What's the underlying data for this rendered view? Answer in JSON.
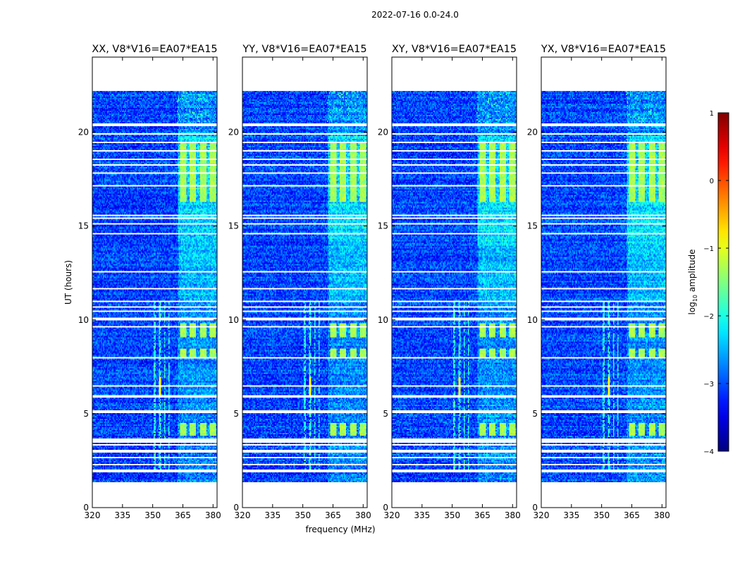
{
  "figure_title": "2022-07-16 0.0-24.0",
  "chart_data": [
    {
      "type": "heatmap",
      "title": "XX, V8*V16=EA07*EA15",
      "xlabel": "",
      "ylabel": "UT (hours)",
      "xlim": [
        320,
        382
      ],
      "ylim": [
        0,
        24
      ],
      "xticks": [
        320,
        335,
        350,
        365,
        380
      ],
      "yticks": [
        0,
        5,
        10,
        15,
        20
      ],
      "variant": 0
    },
    {
      "type": "heatmap",
      "title": "YY, V8*V16=EA07*EA15",
      "xlabel": "frequency (MHz)",
      "ylabel": "",
      "xlim": [
        320,
        382
      ],
      "ylim": [
        0,
        24
      ],
      "xticks": [
        320,
        335,
        350,
        365,
        380
      ],
      "yticks": [
        0,
        5,
        10,
        15,
        20
      ],
      "variant": 1
    },
    {
      "type": "heatmap",
      "title": "XY, V8*V16=EA07*EA15",
      "xlabel": "",
      "ylabel": "",
      "xlim": [
        320,
        382
      ],
      "ylim": [
        0,
        24
      ],
      "xticks": [
        320,
        335,
        350,
        365,
        380
      ],
      "yticks": [
        0,
        5,
        10,
        15,
        20
      ],
      "variant": 2
    },
    {
      "type": "heatmap",
      "title": "YX, V8*V16=EA07*EA15",
      "xlabel": "",
      "ylabel": "",
      "xlim": [
        320,
        382
      ],
      "ylim": [
        0,
        24
      ],
      "xticks": [
        320,
        335,
        350,
        365,
        380
      ],
      "yticks": [
        0,
        5,
        10,
        15,
        20
      ],
      "variant": 3
    }
  ],
  "colorbar": {
    "label_prefix": "log",
    "label_sub": "10",
    "label_suffix": " amplitude",
    "range": [
      -4,
      1
    ],
    "ticks": [
      1,
      0,
      -1,
      -2,
      -3,
      -4
    ],
    "tick_labels": [
      "1",
      "0",
      "−1",
      "−2",
      "−3",
      "−4"
    ]
  },
  "structure": {
    "flag_gaps_hours": [
      [
        1.25,
        1.35
      ],
      [
        1.62,
        1.68
      ],
      [
        1.85,
        2.0
      ],
      [
        2.25,
        2.3
      ],
      [
        2.6,
        2.68
      ],
      [
        2.95,
        3.05
      ],
      [
        3.28,
        3.35
      ],
      [
        3.45,
        3.65
      ],
      [
        5.05,
        5.2
      ],
      [
        5.85,
        6.0
      ],
      [
        6.45,
        6.55
      ],
      [
        7.4,
        7.45
      ],
      [
        7.95,
        8.0
      ],
      [
        9.05,
        9.1
      ],
      [
        9.6,
        9.65
      ],
      [
        9.95,
        10.1
      ],
      [
        10.4,
        10.5
      ],
      [
        10.65,
        10.72
      ],
      [
        10.95,
        11.0
      ],
      [
        11.65,
        11.7
      ],
      [
        12.5,
        12.6
      ],
      [
        13.25,
        13.3
      ],
      [
        13.85,
        13.9
      ],
      [
        14.55,
        14.6
      ],
      [
        15.05,
        15.12
      ],
      [
        15.35,
        15.42
      ],
      [
        15.55,
        15.6
      ],
      [
        16.1,
        16.15
      ],
      [
        16.55,
        16.6
      ],
      [
        17.1,
        17.15
      ],
      [
        17.45,
        17.5
      ],
      [
        17.8,
        17.85
      ],
      [
        18.2,
        18.28
      ],
      [
        18.55,
        18.6
      ],
      [
        18.95,
        19.02
      ],
      [
        19.45,
        19.5
      ],
      [
        19.85,
        19.95
      ],
      [
        20.35,
        20.45
      ],
      [
        22.2,
        24.0
      ]
    ],
    "blocks_mhz": [
      [
        363.5,
        366.5
      ],
      [
        368.5,
        371.5
      ],
      [
        373.5,
        376.5
      ],
      [
        378.5,
        381.5
      ]
    ],
    "bright_epochs_hours": [
      [
        3.8,
        4.5
      ],
      [
        8.0,
        8.5
      ],
      [
        9.1,
        9.8
      ],
      [
        16.3,
        19.5
      ]
    ],
    "rfi_lines_mhz": [
      350.6,
      351.1,
      353.6,
      356.1,
      358.1
    ]
  }
}
